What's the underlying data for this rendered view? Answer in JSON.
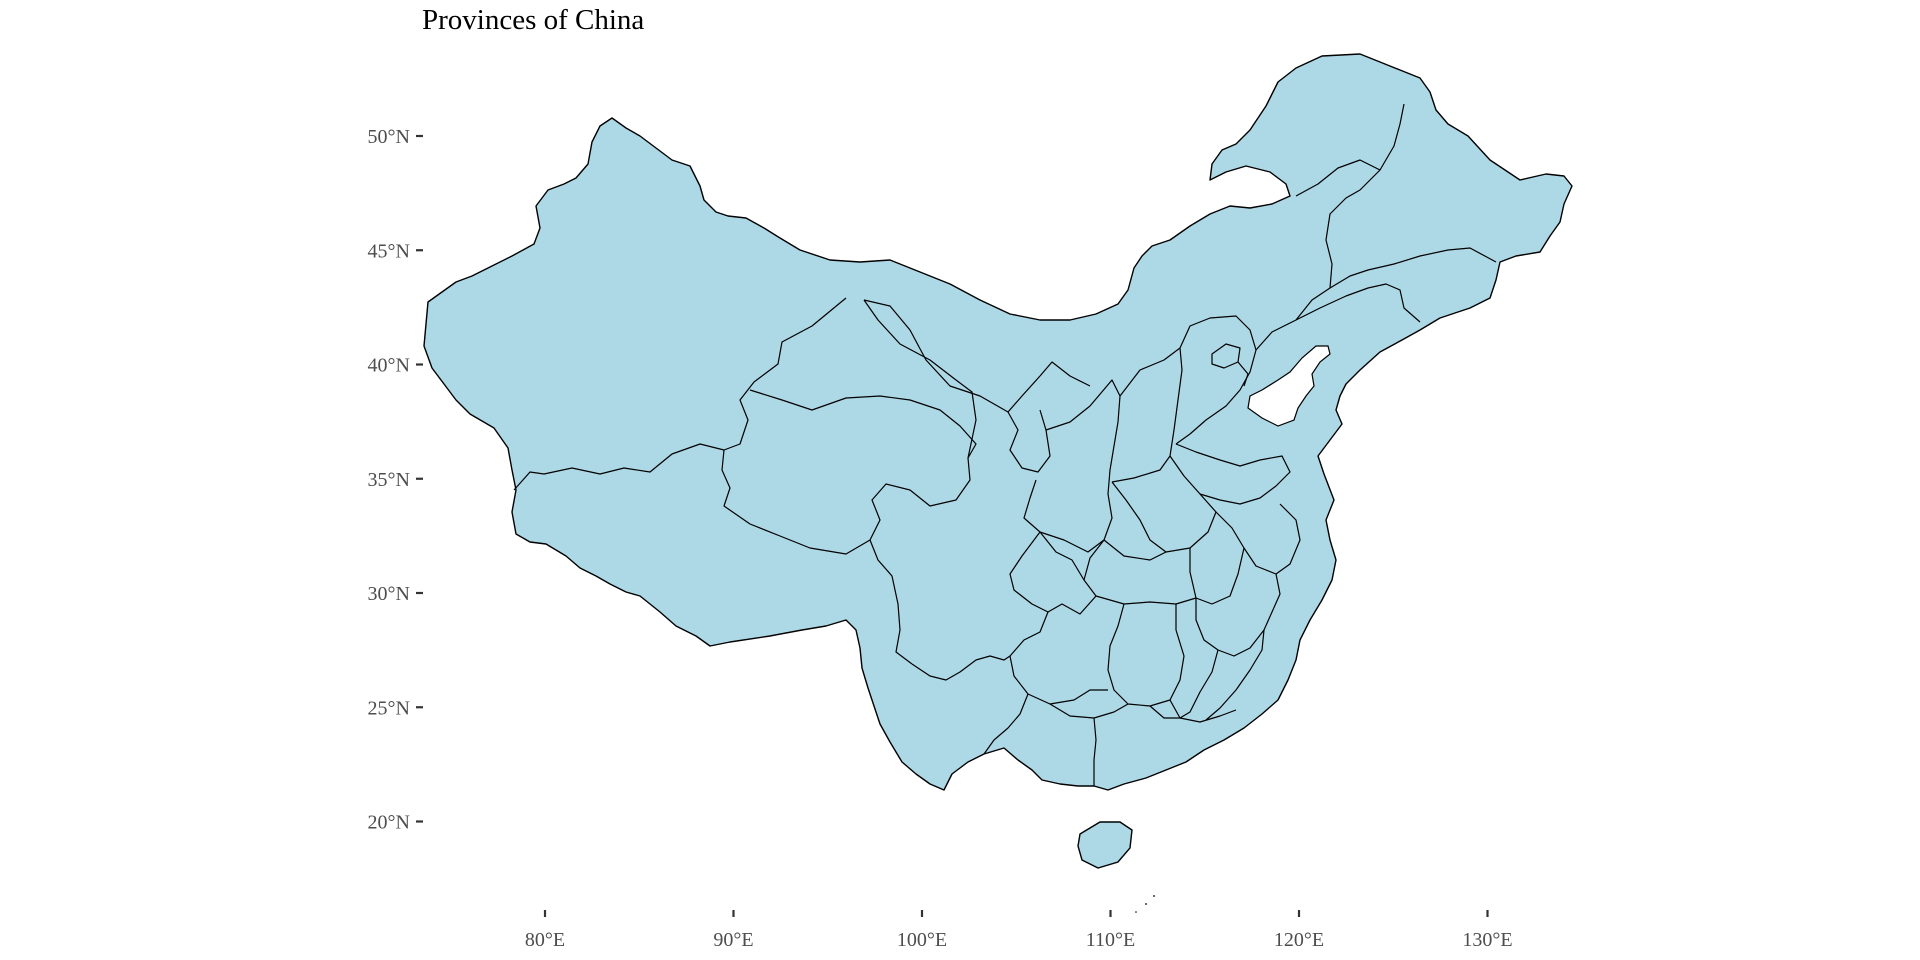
{
  "title": "Provinces of China",
  "colors": {
    "land": "#add8e6",
    "border": "#000000",
    "text": "#4d4d4d"
  },
  "axes": {
    "lat_ticks": [
      {
        "value": 50,
        "label": "50°N"
      },
      {
        "value": 45,
        "label": "45°N"
      },
      {
        "value": 40,
        "label": "40°N"
      },
      {
        "value": 35,
        "label": "35°N"
      },
      {
        "value": 30,
        "label": "30°N"
      },
      {
        "value": 25,
        "label": "25°N"
      },
      {
        "value": 20,
        "label": "20°N"
      }
    ],
    "lon_ticks": [
      {
        "value": 80,
        "label": "80°E"
      },
      {
        "value": 90,
        "label": "90°E"
      },
      {
        "value": 100,
        "label": "100°E"
      },
      {
        "value": 110,
        "label": "110°E"
      },
      {
        "value": 120,
        "label": "120°E"
      },
      {
        "value": 130,
        "label": "130°E"
      }
    ]
  }
}
